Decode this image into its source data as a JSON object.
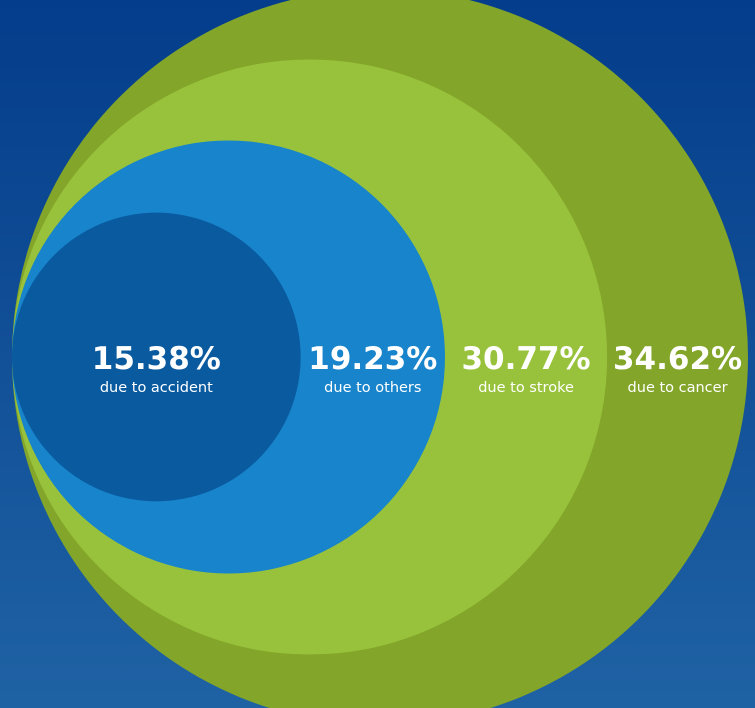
{
  "chart_data": {
    "type": "nested_circles",
    "categories": [
      "due to accident",
      "due to others",
      "due to stroke",
      "due to cancer"
    ],
    "values": [
      15.38,
      19.23,
      30.77,
      34.62
    ],
    "value_labels": [
      "15.38%",
      "19.23%",
      "30.77%",
      "34.62%"
    ],
    "colors": [
      "#0a5a9f",
      "#1784cb",
      "#98c23b",
      "#82a52a"
    ]
  }
}
